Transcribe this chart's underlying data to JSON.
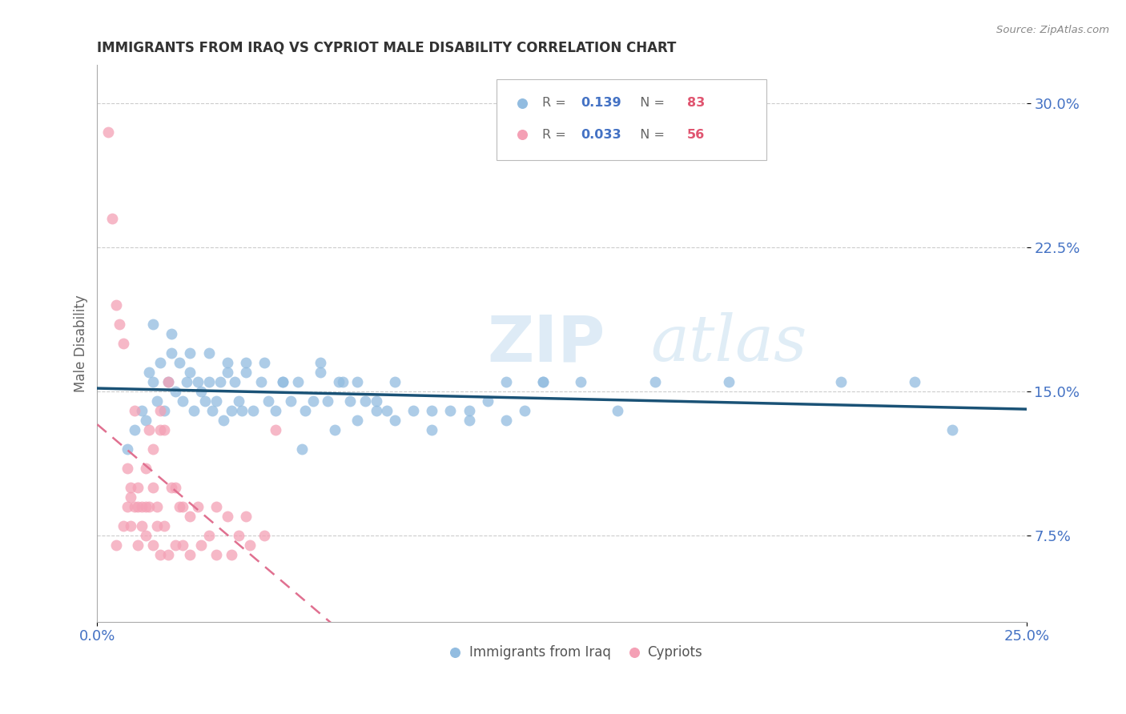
{
  "title": "IMMIGRANTS FROM IRAQ VS CYPRIOT MALE DISABILITY CORRELATION CHART",
  "source": "Source: ZipAtlas.com",
  "ylabel": "Male Disability",
  "yticks": [
    0.075,
    0.15,
    0.225,
    0.3
  ],
  "ytick_labels": [
    "7.5%",
    "15.0%",
    "22.5%",
    "30.0%"
  ],
  "xlim": [
    0.0,
    0.25
  ],
  "ylim": [
    0.03,
    0.32
  ],
  "color_blue": "#92bce0",
  "color_pink": "#f4a0b5",
  "trendline_blue": "#1a5276",
  "trendline_pink": "#e07090",
  "watermark_zip": "ZIP",
  "watermark_atlas": "atlas",
  "iraq_x": [
    0.008,
    0.01,
    0.012,
    0.013,
    0.014,
    0.015,
    0.016,
    0.017,
    0.018,
    0.019,
    0.02,
    0.021,
    0.022,
    0.023,
    0.024,
    0.025,
    0.026,
    0.027,
    0.028,
    0.029,
    0.03,
    0.031,
    0.032,
    0.033,
    0.034,
    0.035,
    0.036,
    0.037,
    0.038,
    0.039,
    0.04,
    0.042,
    0.044,
    0.046,
    0.048,
    0.05,
    0.052,
    0.054,
    0.056,
    0.058,
    0.06,
    0.062,
    0.064,
    0.066,
    0.068,
    0.07,
    0.072,
    0.075,
    0.078,
    0.08,
    0.085,
    0.09,
    0.095,
    0.1,
    0.105,
    0.11,
    0.115,
    0.12,
    0.13,
    0.14,
    0.015,
    0.02,
    0.025,
    0.03,
    0.035,
    0.04,
    0.045,
    0.05,
    0.055,
    0.06,
    0.065,
    0.07,
    0.075,
    0.08,
    0.09,
    0.1,
    0.11,
    0.12,
    0.15,
    0.17,
    0.2,
    0.22,
    0.23
  ],
  "iraq_y": [
    0.12,
    0.13,
    0.14,
    0.135,
    0.16,
    0.155,
    0.145,
    0.165,
    0.14,
    0.155,
    0.17,
    0.15,
    0.165,
    0.145,
    0.155,
    0.16,
    0.14,
    0.155,
    0.15,
    0.145,
    0.155,
    0.14,
    0.145,
    0.155,
    0.135,
    0.165,
    0.14,
    0.155,
    0.145,
    0.14,
    0.165,
    0.14,
    0.155,
    0.145,
    0.14,
    0.155,
    0.145,
    0.155,
    0.14,
    0.145,
    0.16,
    0.145,
    0.13,
    0.155,
    0.145,
    0.135,
    0.145,
    0.14,
    0.14,
    0.135,
    0.14,
    0.13,
    0.14,
    0.14,
    0.145,
    0.155,
    0.14,
    0.155,
    0.155,
    0.14,
    0.185,
    0.18,
    0.17,
    0.17,
    0.16,
    0.16,
    0.165,
    0.155,
    0.12,
    0.165,
    0.155,
    0.155,
    0.145,
    0.155,
    0.14,
    0.135,
    0.135,
    0.155,
    0.155,
    0.155,
    0.155,
    0.155,
    0.13
  ],
  "cypriot_x": [
    0.003,
    0.004,
    0.005,
    0.006,
    0.007,
    0.008,
    0.008,
    0.009,
    0.009,
    0.01,
    0.01,
    0.011,
    0.011,
    0.012,
    0.012,
    0.013,
    0.013,
    0.014,
    0.014,
    0.015,
    0.015,
    0.016,
    0.016,
    0.017,
    0.017,
    0.018,
    0.018,
    0.019,
    0.02,
    0.021,
    0.022,
    0.023,
    0.025,
    0.027,
    0.03,
    0.032,
    0.035,
    0.038,
    0.04,
    0.045,
    0.005,
    0.007,
    0.009,
    0.011,
    0.013,
    0.015,
    0.017,
    0.019,
    0.021,
    0.023,
    0.025,
    0.028,
    0.032,
    0.036,
    0.041,
    0.048
  ],
  "cypriot_y": [
    0.285,
    0.24,
    0.195,
    0.185,
    0.175,
    0.09,
    0.11,
    0.08,
    0.1,
    0.09,
    0.14,
    0.09,
    0.1,
    0.08,
    0.09,
    0.09,
    0.11,
    0.09,
    0.13,
    0.1,
    0.12,
    0.08,
    0.09,
    0.13,
    0.14,
    0.08,
    0.13,
    0.155,
    0.1,
    0.1,
    0.09,
    0.09,
    0.085,
    0.09,
    0.075,
    0.09,
    0.085,
    0.075,
    0.085,
    0.075,
    0.07,
    0.08,
    0.095,
    0.07,
    0.075,
    0.07,
    0.065,
    0.065,
    0.07,
    0.07,
    0.065,
    0.07,
    0.065,
    0.065,
    0.07,
    0.13
  ]
}
